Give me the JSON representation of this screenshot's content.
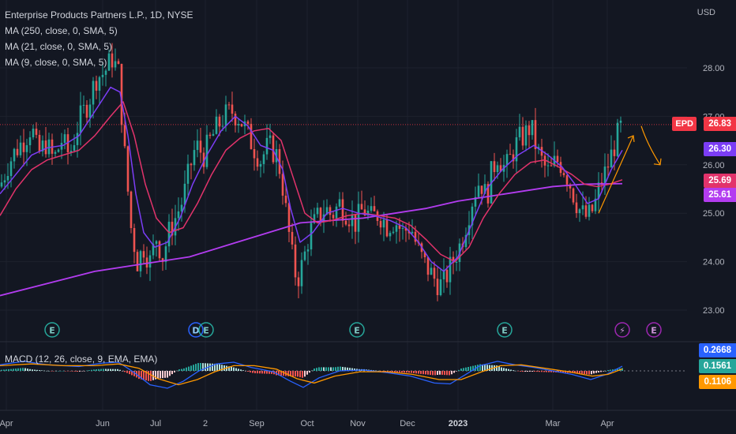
{
  "chart_data": {
    "type": "candlestick",
    "title": "Enterprise Products Partners L.P., 1D, NYSE",
    "currency": "USD",
    "symbol": "EPD",
    "last_price": "26.83",
    "y_ticks": [
      "28.00",
      "27.00",
      "26.00",
      "25.00",
      "24.00",
      "23.00"
    ],
    "x_ticks": [
      "Apr",
      "Jun",
      "Jul",
      "2",
      "Sep",
      "Oct",
      "Nov",
      "Dec",
      "2023",
      "Mar",
      "Apr"
    ],
    "indicators": [
      {
        "label": "MA (250, close, 0, SMA, 5)",
        "color": "#b33cf0",
        "value": "25.61"
      },
      {
        "label": "MA (21, close, 0, SMA, 5)",
        "color": "#e2336b",
        "value": "25.69"
      },
      {
        "label": "MA (9, close, 0, SMA, 5)",
        "color": "#7b3df5",
        "value": "26.30"
      }
    ],
    "macd": {
      "label": "MACD (12, 26, close, 9, EMA, EMA)",
      "macd_value": "0.2668",
      "signal_value": "0.1106",
      "hist_value": "0.1561",
      "macd_color": "#2962ff",
      "signal_color": "#ff9800",
      "hist_color": "#26a69a"
    },
    "price_path": [
      [
        0,
        25.55
      ],
      [
        10,
        26.0
      ],
      [
        20,
        26.3
      ],
      [
        32,
        26.55
      ],
      [
        40,
        26.8
      ],
      [
        48,
        26.2
      ],
      [
        58,
        26.45
      ],
      [
        68,
        26.1
      ],
      [
        78,
        26.5
      ],
      [
        88,
        26.2
      ],
      [
        100,
        26.9
      ],
      [
        112,
        27.3
      ],
      [
        122,
        27.8
      ],
      [
        132,
        27.9
      ],
      [
        142,
        28.2
      ],
      [
        150,
        27.9
      ],
      [
        158,
        26.2
      ],
      [
        166,
        24.7
      ],
      [
        174,
        24.0
      ],
      [
        182,
        24.3
      ],
      [
        190,
        24.0
      ],
      [
        198,
        24.5
      ],
      [
        206,
        24.1
      ],
      [
        214,
        24.6
      ],
      [
        222,
        24.9
      ],
      [
        232,
        25.3
      ],
      [
        240,
        25.9
      ],
      [
        248,
        26.4
      ],
      [
        258,
        26.2
      ],
      [
        266,
        26.5
      ],
      [
        276,
        26.8
      ],
      [
        284,
        27.0
      ],
      [
        294,
        27.1
      ],
      [
        304,
        26.95
      ],
      [
        312,
        26.7
      ],
      [
        320,
        26.4
      ],
      [
        330,
        26.1
      ],
      [
        340,
        26.4
      ],
      [
        350,
        26.2
      ],
      [
        356,
        25.8
      ],
      [
        364,
        24.8
      ],
      [
        370,
        24.1
      ],
      [
        376,
        23.6
      ],
      [
        384,
        24.0
      ],
      [
        392,
        24.6
      ],
      [
        402,
        24.9
      ],
      [
        412,
        25.1
      ],
      [
        420,
        24.95
      ],
      [
        430,
        25.2
      ],
      [
        440,
        25.0
      ],
      [
        450,
        24.8
      ],
      [
        460,
        25.1
      ],
      [
        470,
        24.9
      ],
      [
        480,
        25.0
      ],
      [
        490,
        24.75
      ],
      [
        500,
        24.85
      ],
      [
        510,
        24.6
      ],
      [
        520,
        24.75
      ],
      [
        528,
        24.3
      ],
      [
        536,
        24.0
      ],
      [
        544,
        23.8
      ],
      [
        552,
        23.6
      ],
      [
        560,
        23.5
      ],
      [
        568,
        23.8
      ],
      [
        576,
        24.1
      ],
      [
        584,
        24.4
      ],
      [
        592,
        24.9
      ],
      [
        600,
        25.4
      ],
      [
        608,
        25.7
      ],
      [
        616,
        25.3
      ],
      [
        622,
        25.8
      ],
      [
        630,
        26.2
      ],
      [
        640,
        25.9
      ],
      [
        648,
        26.2
      ],
      [
        656,
        26.5
      ],
      [
        664,
        26.6
      ],
      [
        672,
        26.8
      ],
      [
        680,
        26.3
      ],
      [
        688,
        26.0
      ],
      [
        696,
        25.8
      ],
      [
        704,
        26.1
      ],
      [
        712,
        26.0
      ],
      [
        720,
        25.7
      ],
      [
        728,
        25.3
      ],
      [
        736,
        25.0
      ],
      [
        744,
        24.9
      ],
      [
        752,
        25.1
      ],
      [
        760,
        25.6
      ],
      [
        768,
        25.9
      ],
      [
        776,
        26.3
      ],
      [
        782,
        26.6
      ],
      [
        788,
        26.83
      ]
    ],
    "ma9_path": [
      [
        0,
        25.4
      ],
      [
        20,
        25.8
      ],
      [
        40,
        26.2
      ],
      [
        60,
        26.35
      ],
      [
        80,
        26.4
      ],
      [
        100,
        26.6
      ],
      [
        120,
        27.1
      ],
      [
        140,
        27.6
      ],
      [
        152,
        27.5
      ],
      [
        162,
        26.6
      ],
      [
        172,
        25.4
      ],
      [
        182,
        24.6
      ],
      [
        196,
        24.3
      ],
      [
        212,
        24.4
      ],
      [
        228,
        24.9
      ],
      [
        244,
        25.6
      ],
      [
        262,
        26.2
      ],
      [
        280,
        26.7
      ],
      [
        298,
        27.0
      ],
      [
        314,
        26.8
      ],
      [
        330,
        26.4
      ],
      [
        346,
        26.3
      ],
      [
        358,
        25.9
      ],
      [
        368,
        25.1
      ],
      [
        380,
        24.4
      ],
      [
        396,
        24.6
      ],
      [
        414,
        25.0
      ],
      [
        434,
        25.1
      ],
      [
        454,
        25.0
      ],
      [
        474,
        24.95
      ],
      [
        494,
        24.85
      ],
      [
        514,
        24.7
      ],
      [
        530,
        24.4
      ],
      [
        546,
        24.0
      ],
      [
        562,
        23.8
      ],
      [
        580,
        24.1
      ],
      [
        598,
        24.8
      ],
      [
        616,
        25.5
      ],
      [
        636,
        25.9
      ],
      [
        656,
        26.2
      ],
      [
        676,
        26.4
      ],
      [
        694,
        26.2
      ],
      [
        712,
        25.95
      ],
      [
        728,
        25.6
      ],
      [
        744,
        25.2
      ],
      [
        758,
        25.3
      ],
      [
        774,
        25.9
      ],
      [
        788,
        26.3
      ]
    ],
    "ma21_path": [
      [
        0,
        24.95
      ],
      [
        20,
        25.5
      ],
      [
        40,
        25.9
      ],
      [
        60,
        26.1
      ],
      [
        80,
        26.2
      ],
      [
        100,
        26.3
      ],
      [
        120,
        26.6
      ],
      [
        140,
        27.0
      ],
      [
        156,
        27.3
      ],
      [
        170,
        26.6
      ],
      [
        184,
        25.6
      ],
      [
        198,
        24.9
      ],
      [
        214,
        24.6
      ],
      [
        232,
        24.7
      ],
      [
        250,
        25.2
      ],
      [
        268,
        25.8
      ],
      [
        286,
        26.3
      ],
      [
        304,
        26.55
      ],
      [
        322,
        26.7
      ],
      [
        340,
        26.75
      ],
      [
        356,
        26.5
      ],
      [
        370,
        25.8
      ],
      [
        386,
        25.0
      ],
      [
        402,
        24.8
      ],
      [
        420,
        24.85
      ],
      [
        440,
        24.95
      ],
      [
        460,
        25.0
      ],
      [
        480,
        24.95
      ],
      [
        500,
        24.9
      ],
      [
        520,
        24.75
      ],
      [
        540,
        24.45
      ],
      [
        558,
        24.15
      ],
      [
        576,
        24.0
      ],
      [
        594,
        24.3
      ],
      [
        612,
        24.9
      ],
      [
        632,
        25.4
      ],
      [
        652,
        25.8
      ],
      [
        672,
        26.05
      ],
      [
        690,
        26.1
      ],
      [
        708,
        25.95
      ],
      [
        724,
        25.8
      ],
      [
        740,
        25.6
      ],
      [
        756,
        25.55
      ],
      [
        772,
        25.6
      ],
      [
        788,
        25.69
      ]
    ],
    "ma250_path": [
      [
        0,
        23.3
      ],
      [
        60,
        23.55
      ],
      [
        120,
        23.8
      ],
      [
        180,
        23.95
      ],
      [
        240,
        24.1
      ],
      [
        300,
        24.4
      ],
      [
        340,
        24.6
      ],
      [
        380,
        24.8
      ],
      [
        420,
        24.85
      ],
      [
        460,
        24.9
      ],
      [
        500,
        25.0
      ],
      [
        540,
        25.1
      ],
      [
        580,
        25.25
      ],
      [
        620,
        25.35
      ],
      [
        660,
        25.45
      ],
      [
        700,
        25.55
      ],
      [
        740,
        25.6
      ],
      [
        788,
        25.61
      ]
    ],
    "macd_line": [
      [
        0,
        0.35
      ],
      [
        30,
        0.55
      ],
      [
        60,
        0.35
      ],
      [
        100,
        0.25
      ],
      [
        130,
        0.45
      ],
      [
        150,
        0.5
      ],
      [
        170,
        -0.1
      ],
      [
        190,
        -0.8
      ],
      [
        212,
        -1.0
      ],
      [
        232,
        -0.6
      ],
      [
        252,
        0.0
      ],
      [
        274,
        0.4
      ],
      [
        296,
        0.5
      ],
      [
        318,
        0.2
      ],
      [
        346,
        -0.05
      ],
      [
        368,
        -0.6
      ],
      [
        384,
        -0.95
      ],
      [
        404,
        -0.4
      ],
      [
        430,
        0.0
      ],
      [
        460,
        0.05
      ],
      [
        490,
        -0.1
      ],
      [
        520,
        -0.3
      ],
      [
        550,
        -0.7
      ],
      [
        570,
        -0.75
      ],
      [
        590,
        -0.2
      ],
      [
        608,
        0.3
      ],
      [
        630,
        0.55
      ],
      [
        652,
        0.35
      ],
      [
        676,
        0.2
      ],
      [
        700,
        0.0
      ],
      [
        724,
        -0.2
      ],
      [
        748,
        -0.5
      ],
      [
        768,
        -0.2
      ],
      [
        788,
        0.27
      ]
    ],
    "signal_line": [
      [
        0,
        0.3
      ],
      [
        40,
        0.4
      ],
      [
        80,
        0.3
      ],
      [
        120,
        0.3
      ],
      [
        150,
        0.4
      ],
      [
        176,
        0.15
      ],
      [
        200,
        -0.45
      ],
      [
        226,
        -0.8
      ],
      [
        250,
        -0.5
      ],
      [
        272,
        -0.05
      ],
      [
        296,
        0.3
      ],
      [
        322,
        0.3
      ],
      [
        350,
        0.1
      ],
      [
        376,
        -0.45
      ],
      [
        398,
        -0.7
      ],
      [
        424,
        -0.3
      ],
      [
        456,
        -0.05
      ],
      [
        490,
        -0.05
      ],
      [
        522,
        -0.2
      ],
      [
        556,
        -0.5
      ],
      [
        584,
        -0.5
      ],
      [
        610,
        -0.05
      ],
      [
        634,
        0.3
      ],
      [
        660,
        0.35
      ],
      [
        690,
        0.15
      ],
      [
        720,
        -0.05
      ],
      [
        750,
        -0.3
      ],
      [
        770,
        -0.2
      ],
      [
        788,
        0.11
      ]
    ],
    "annotations": [
      {
        "type": "arrow-up",
        "from": [
          758,
          25.0
        ],
        "to": [
          802,
          26.6
        ],
        "color": "#ff9800"
      },
      {
        "type": "curved-arrow",
        "from": [
          812,
          26.8
        ],
        "to": [
          836,
          26.0
        ],
        "color": "#ff9800"
      }
    ],
    "event_markers": [
      {
        "x": 66,
        "label": "E"
      },
      {
        "x": 248,
        "label": "D"
      },
      {
        "x": 261,
        "label": "E"
      },
      {
        "x": 452,
        "label": "E"
      },
      {
        "x": 639,
        "label": "E"
      },
      {
        "x": 788,
        "label": "⚡"
      },
      {
        "x": 828,
        "label": "E"
      }
    ]
  }
}
